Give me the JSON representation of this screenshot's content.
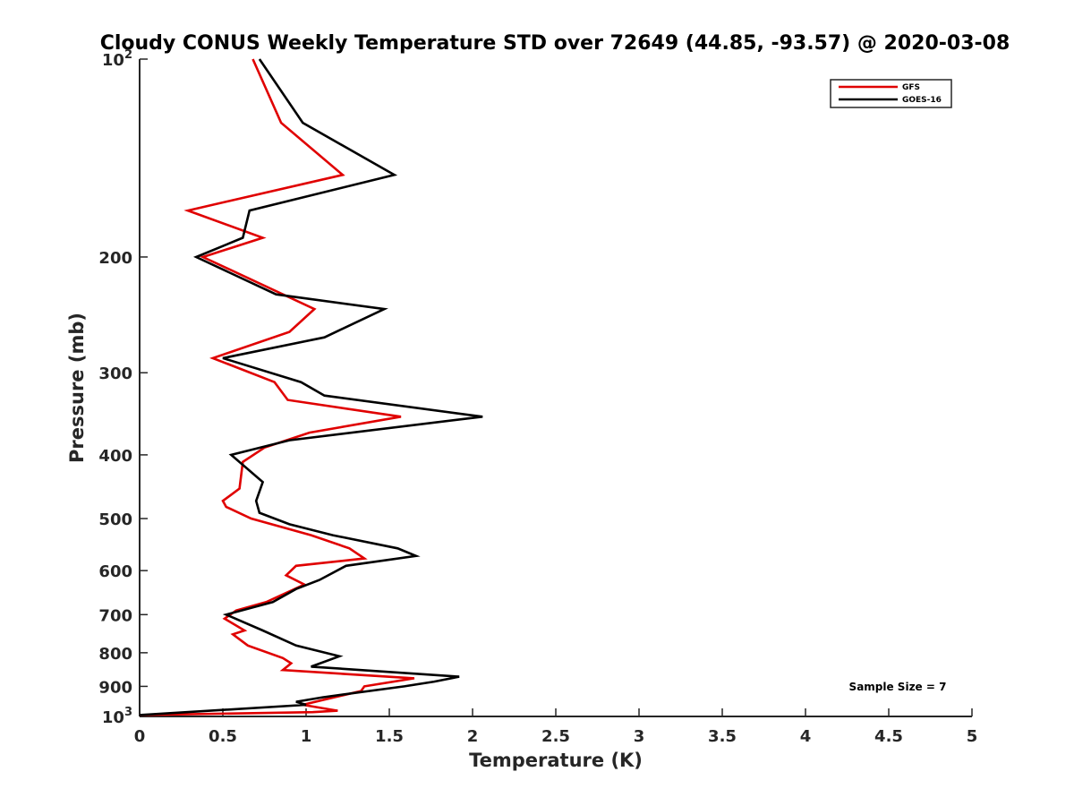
{
  "chart_data": {
    "type": "line",
    "title": "Cloudy CONUS Weekly Temperature STD over 72649 (44.85, -93.57) @ 2020-03-08",
    "xlabel": "Temperature (K)",
    "ylabel": "Pressure (mb)",
    "xlim": [
      0,
      5
    ],
    "ylim": [
      100,
      1000
    ],
    "y_scale": "log",
    "y_reversed": true,
    "grid": false,
    "legend_position": "top-right",
    "annotation": "Sample Size = 7",
    "x_ticks": [
      {
        "value": 0,
        "label": "0"
      },
      {
        "value": 0.5,
        "label": "0.5"
      },
      {
        "value": 1,
        "label": "1"
      },
      {
        "value": 1.5,
        "label": "1.5"
      },
      {
        "value": 2,
        "label": "2"
      },
      {
        "value": 2.5,
        "label": "2.5"
      },
      {
        "value": 3,
        "label": "3"
      },
      {
        "value": 3.5,
        "label": "3.5"
      },
      {
        "value": 4,
        "label": "4"
      },
      {
        "value": 4.5,
        "label": "4.5"
      },
      {
        "value": 5,
        "label": "5"
      }
    ],
    "y_ticks": [
      {
        "value": 100,
        "base": "10",
        "exp": "2"
      },
      {
        "value": 200,
        "label": "200"
      },
      {
        "value": 300,
        "label": "300"
      },
      {
        "value": 400,
        "label": "400"
      },
      {
        "value": 500,
        "label": "500"
      },
      {
        "value": 600,
        "label": "600"
      },
      {
        "value": 700,
        "label": "700"
      },
      {
        "value": 800,
        "label": "800"
      },
      {
        "value": 900,
        "label": "900"
      },
      {
        "value": 1000,
        "base": "10",
        "exp": "3"
      }
    ],
    "series": [
      {
        "name": "GFS",
        "color": "#e00000",
        "points": [
          [
            0.68,
            100
          ],
          [
            0.85,
            125
          ],
          [
            1.22,
            150
          ],
          [
            0.29,
            170
          ],
          [
            0.74,
            187
          ],
          [
            0.38,
            200
          ],
          [
            1.05,
            240
          ],
          [
            0.9,
            260
          ],
          [
            0.44,
            285
          ],
          [
            0.81,
            310
          ],
          [
            0.89,
            330
          ],
          [
            1.57,
            350
          ],
          [
            1.02,
            370
          ],
          [
            0.75,
            390
          ],
          [
            0.62,
            410
          ],
          [
            0.6,
            450
          ],
          [
            0.5,
            470
          ],
          [
            0.52,
            480
          ],
          [
            0.67,
            500
          ],
          [
            1.03,
            530
          ],
          [
            1.26,
            555
          ],
          [
            1.35,
            575
          ],
          [
            0.94,
            590
          ],
          [
            0.88,
            610
          ],
          [
            0.99,
            630
          ],
          [
            0.76,
            670
          ],
          [
            0.58,
            690
          ],
          [
            0.51,
            710
          ],
          [
            0.63,
            740
          ],
          [
            0.56,
            750
          ],
          [
            0.65,
            780
          ],
          [
            0.86,
            815
          ],
          [
            0.91,
            830
          ],
          [
            0.86,
            850
          ],
          [
            1.65,
            875
          ],
          [
            1.35,
            900
          ],
          [
            1.33,
            915
          ],
          [
            1.13,
            940
          ],
          [
            0.98,
            960
          ],
          [
            1.19,
            980
          ],
          [
            1.04,
            985
          ],
          [
            0,
            995
          ]
        ]
      },
      {
        "name": "GOES-16",
        "color": "#000000",
        "points": [
          [
            0.72,
            100
          ],
          [
            0.98,
            125
          ],
          [
            1.53,
            150
          ],
          [
            0.66,
            170
          ],
          [
            0.62,
            187
          ],
          [
            0.34,
            200
          ],
          [
            0.82,
            228
          ],
          [
            1.47,
            240
          ],
          [
            1.11,
            265
          ],
          [
            0.5,
            285
          ],
          [
            0.97,
            310
          ],
          [
            1.11,
            325
          ],
          [
            2.06,
            350
          ],
          [
            0.9,
            380
          ],
          [
            0.55,
            400
          ],
          [
            0.74,
            440
          ],
          [
            0.7,
            470
          ],
          [
            0.72,
            490
          ],
          [
            0.9,
            510
          ],
          [
            1.16,
            530
          ],
          [
            1.55,
            555
          ],
          [
            1.66,
            570
          ],
          [
            1.24,
            590
          ],
          [
            1.08,
            620
          ],
          [
            0.94,
            640
          ],
          [
            0.8,
            670
          ],
          [
            0.52,
            700
          ],
          [
            0.74,
            740
          ],
          [
            0.94,
            780
          ],
          [
            1.2,
            810
          ],
          [
            1.03,
            840
          ],
          [
            1.92,
            870
          ],
          [
            1.77,
            885
          ],
          [
            1.59,
            900
          ],
          [
            1.1,
            935
          ],
          [
            0.94,
            950
          ],
          [
            1.0,
            960
          ],
          [
            0,
            995
          ]
        ]
      }
    ]
  }
}
